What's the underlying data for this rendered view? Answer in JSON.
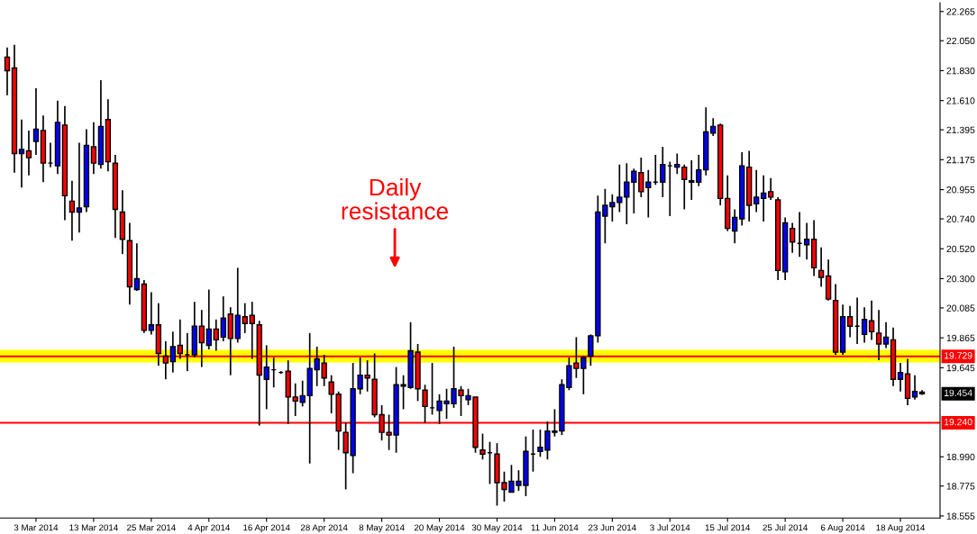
{
  "chart_data": {
    "type": "candlestick",
    "categories": [
      null,
      null,
      null,
      null,
      "3 Mar 2014",
      null,
      null,
      null,
      null,
      null,
      null,
      null,
      "13 Mar 2014",
      null,
      null,
      null,
      null,
      null,
      null,
      null,
      "25 Mar 2014",
      null,
      null,
      null,
      null,
      null,
      null,
      null,
      "4 Apr 2014",
      null,
      null,
      null,
      null,
      null,
      null,
      null,
      "16 Apr 2014",
      null,
      null,
      null,
      null,
      null,
      null,
      null,
      "28 Apr 2014",
      null,
      null,
      null,
      null,
      null,
      null,
      null,
      "8 May 2014",
      null,
      null,
      null,
      null,
      null,
      null,
      null,
      "20 May 2014",
      null,
      null,
      null,
      null,
      null,
      null,
      null,
      "30 May 2014",
      null,
      null,
      null,
      null,
      null,
      null,
      null,
      "11 Jun 2014",
      null,
      null,
      null,
      null,
      null,
      null,
      null,
      "23 Jun 2014",
      null,
      null,
      null,
      null,
      null,
      null,
      null,
      "3 Jul 2014",
      null,
      null,
      null,
      null,
      null,
      null,
      null,
      "15 Jul 2014",
      null,
      null,
      null,
      null,
      null,
      null,
      null,
      "25 Jul 2014",
      null,
      null,
      null,
      null,
      null,
      null,
      null,
      "6 Aug 2014",
      null,
      null,
      null,
      null,
      null,
      null,
      null,
      "18 Aug 2014",
      null,
      null,
      null
    ],
    "ohlc": [
      [
        21.93,
        22.0,
        21.65,
        21.83
      ],
      [
        21.85,
        22.02,
        21.08,
        21.22
      ],
      [
        21.22,
        21.47,
        20.97,
        21.25
      ],
      [
        21.24,
        21.39,
        21.06,
        21.19
      ],
      [
        21.31,
        21.7,
        21.21,
        21.4
      ],
      [
        21.39,
        21.5,
        21.01,
        21.15
      ],
      [
        21.15,
        21.3,
        21.12,
        21.15
      ],
      [
        21.13,
        21.61,
        21.07,
        21.45
      ],
      [
        21.43,
        21.57,
        20.73,
        20.91
      ],
      [
        20.87,
        21.02,
        20.58,
        20.79
      ],
      [
        20.79,
        21.3,
        20.64,
        20.82
      ],
      [
        20.83,
        21.4,
        20.79,
        21.28
      ],
      [
        21.27,
        21.45,
        21.07,
        21.15
      ],
      [
        21.14,
        21.76,
        21.11,
        21.42
      ],
      [
        21.47,
        21.62,
        21.09,
        21.16
      ],
      [
        21.15,
        21.21,
        20.6,
        20.81
      ],
      [
        20.79,
        20.95,
        20.48,
        20.59
      ],
      [
        20.58,
        20.71,
        20.11,
        20.24
      ],
      [
        20.22,
        20.56,
        20.21,
        20.3
      ],
      [
        20.26,
        20.29,
        19.9,
        19.92
      ],
      [
        19.92,
        20.2,
        19.89,
        19.96
      ],
      [
        19.96,
        20.12,
        19.66,
        19.75
      ],
      [
        19.73,
        19.84,
        19.56,
        19.68
      ],
      [
        19.69,
        19.91,
        19.61,
        19.8
      ],
      [
        19.81,
        20.0,
        19.71,
        19.75
      ],
      [
        19.74,
        19.9,
        19.62,
        19.74
      ],
      [
        19.74,
        20.13,
        19.72,
        19.95
      ],
      [
        19.95,
        20.07,
        19.65,
        19.83
      ],
      [
        19.81,
        20.22,
        19.78,
        19.93
      ],
      [
        19.93,
        20.0,
        19.77,
        19.85
      ],
      [
        19.87,
        20.17,
        19.84,
        20.01
      ],
      [
        20.04,
        20.09,
        19.59,
        19.86
      ],
      [
        19.86,
        20.38,
        19.83,
        20.03
      ],
      [
        20.02,
        20.12,
        19.9,
        19.97
      ],
      [
        20.03,
        20.13,
        19.71,
        19.97
      ],
      [
        19.96,
        19.99,
        19.22,
        19.59
      ],
      [
        19.56,
        19.81,
        19.34,
        19.65
      ],
      [
        19.63,
        19.72,
        19.5,
        19.63
      ],
      [
        19.61,
        19.62,
        19.6,
        19.61
      ],
      [
        19.62,
        19.7,
        19.23,
        19.43
      ],
      [
        19.43,
        19.53,
        19.29,
        19.4
      ],
      [
        19.39,
        19.55,
        19.36,
        19.44
      ],
      [
        19.44,
        19.9,
        18.94,
        19.64
      ],
      [
        19.63,
        19.8,
        19.51,
        19.71
      ],
      [
        19.68,
        19.74,
        19.51,
        19.57
      ],
      [
        19.54,
        19.59,
        19.31,
        19.45
      ],
      [
        19.45,
        19.47,
        19.04,
        19.18
      ],
      [
        19.17,
        19.24,
        18.75,
        19.02
      ],
      [
        19.0,
        19.68,
        18.87,
        19.49
      ],
      [
        19.49,
        19.72,
        19.45,
        19.59
      ],
      [
        19.59,
        19.7,
        19.47,
        19.57
      ],
      [
        19.56,
        19.75,
        19.28,
        19.3
      ],
      [
        19.3,
        19.37,
        19.11,
        19.17
      ],
      [
        19.17,
        19.3,
        19.04,
        19.15
      ],
      [
        19.15,
        19.65,
        19.02,
        19.52
      ],
      [
        19.51,
        19.59,
        19.34,
        19.52
      ],
      [
        19.5,
        19.98,
        19.49,
        19.77
      ],
      [
        19.76,
        19.82,
        19.4,
        19.49
      ],
      [
        19.48,
        19.52,
        19.24,
        19.36
      ],
      [
        19.35,
        19.68,
        19.3,
        19.35
      ],
      [
        19.33,
        19.45,
        19.23,
        19.4
      ],
      [
        19.38,
        19.49,
        19.27,
        19.4
      ],
      [
        19.38,
        19.8,
        19.35,
        19.49
      ],
      [
        19.48,
        19.51,
        19.29,
        19.44
      ],
      [
        19.41,
        19.49,
        19.37,
        19.44
      ],
      [
        19.43,
        19.43,
        19.02,
        19.06
      ],
      [
        19.04,
        19.16,
        18.97,
        19.01
      ],
      [
        19.02,
        19.1,
        18.79,
        19.02
      ],
      [
        19.01,
        19.09,
        18.63,
        18.8
      ],
      [
        18.8,
        18.88,
        18.66,
        18.75
      ],
      [
        18.73,
        18.93,
        18.73,
        18.81
      ],
      [
        18.78,
        18.89,
        18.74,
        18.81
      ],
      [
        18.78,
        19.14,
        18.7,
        19.03
      ],
      [
        19.01,
        19.19,
        18.88,
        19.01
      ],
      [
        19.03,
        19.19,
        18.99,
        19.06
      ],
      [
        19.04,
        19.25,
        18.97,
        19.18
      ],
      [
        19.17,
        19.34,
        19.14,
        19.18
      ],
      [
        19.18,
        19.56,
        19.15,
        19.52
      ],
      [
        19.5,
        19.72,
        19.48,
        19.66
      ],
      [
        19.68,
        19.87,
        19.57,
        19.64
      ],
      [
        19.64,
        19.73,
        19.45,
        19.72
      ],
      [
        19.73,
        19.89,
        19.66,
        19.88
      ],
      [
        19.88,
        20.91,
        19.83,
        20.79
      ],
      [
        20.76,
        20.96,
        20.56,
        20.84
      ],
      [
        20.83,
        20.92,
        20.72,
        20.86
      ],
      [
        20.86,
        21.14,
        20.79,
        20.9
      ],
      [
        20.9,
        21.15,
        20.7,
        21.01
      ],
      [
        21.01,
        21.11,
        20.78,
        21.09
      ],
      [
        21.08,
        21.19,
        20.9,
        20.94
      ],
      [
        20.97,
        21.1,
        20.75,
        21.01
      ],
      [
        21.01,
        21.21,
        20.99,
        21.01
      ],
      [
        21.01,
        21.27,
        20.9,
        21.14
      ],
      [
        21.13,
        21.16,
        20.76,
        21.13
      ],
      [
        21.12,
        21.22,
        21.07,
        21.14
      ],
      [
        21.12,
        21.14,
        20.81,
        21.03
      ],
      [
        21.02,
        21.17,
        20.88,
        21.01
      ],
      [
        21.01,
        21.21,
        20.98,
        21.1
      ],
      [
        21.1,
        21.56,
        21.06,
        21.38
      ],
      [
        21.37,
        21.48,
        21.35,
        21.42
      ],
      [
        21.43,
        21.44,
        20.84,
        20.89
      ],
      [
        20.89,
        21.06,
        20.65,
        20.67
      ],
      [
        20.65,
        20.81,
        20.56,
        20.75
      ],
      [
        20.74,
        21.23,
        20.69,
        21.13
      ],
      [
        21.12,
        21.24,
        20.72,
        20.84
      ],
      [
        20.85,
        21.1,
        20.79,
        20.9
      ],
      [
        20.89,
        21.06,
        20.72,
        20.93
      ],
      [
        20.94,
        21.04,
        20.88,
        20.9
      ],
      [
        20.88,
        20.9,
        20.29,
        20.36
      ],
      [
        20.35,
        20.75,
        20.29,
        20.71
      ],
      [
        20.67,
        20.71,
        20.49,
        20.57
      ],
      [
        20.56,
        20.79,
        20.46,
        20.56
      ],
      [
        20.55,
        20.71,
        20.44,
        20.59
      ],
      [
        20.59,
        20.73,
        20.32,
        20.38
      ],
      [
        20.36,
        20.53,
        20.24,
        20.31
      ],
      [
        20.32,
        20.44,
        20.14,
        20.15
      ],
      [
        20.14,
        20.26,
        19.74,
        19.76
      ],
      [
        19.76,
        20.11,
        19.74,
        20.02
      ],
      [
        20.02,
        20.1,
        19.87,
        19.95
      ],
      [
        19.95,
        20.16,
        19.82,
        19.95
      ],
      [
        19.89,
        20.09,
        19.83,
        20.0
      ],
      [
        19.99,
        20.14,
        19.85,
        19.91
      ],
      [
        19.9,
        20.07,
        19.7,
        19.82
      ],
      [
        19.82,
        19.98,
        19.79,
        19.87
      ],
      [
        19.85,
        19.94,
        19.51,
        19.56
      ],
      [
        19.56,
        19.68,
        19.47,
        19.61
      ],
      [
        19.6,
        19.71,
        19.37,
        19.42
      ],
      [
        19.43,
        19.59,
        19.41,
        19.47
      ],
      [
        19.465,
        19.48,
        19.445,
        19.454
      ]
    ],
    "colors": [
      "#ff0000",
      "#ff0000",
      "#0000ff",
      "#ff0000",
      "#0000ff",
      "#ff0000",
      "#000000",
      "#0000ff",
      "#ff0000",
      "#ff0000",
      "#0000ff",
      "#0000ff",
      "#ff0000",
      "#0000ff",
      "#ff0000",
      "#ff0000",
      "#ff0000",
      "#ff0000",
      "#0000ff",
      "#ff0000",
      "#0000ff",
      "#ff0000",
      "#ff0000",
      "#0000ff",
      "#ff0000",
      "#000000",
      "#0000ff",
      "#ff0000",
      "#0000ff",
      "#ff0000",
      "#0000ff",
      "#ff0000",
      "#0000ff",
      "#ff0000",
      "#ff0000",
      "#ff0000",
      "#0000ff",
      "#000000",
      "#000000",
      "#ff0000",
      "#ff0000",
      "#0000ff",
      "#0000ff",
      "#0000ff",
      "#ff0000",
      "#ff0000",
      "#ff0000",
      "#ff0000",
      "#0000ff",
      "#0000ff",
      "#ff0000",
      "#ff0000",
      "#ff0000",
      "#ff0000",
      "#0000ff",
      "#0000ff",
      "#0000ff",
      "#ff0000",
      "#ff0000",
      "#000000",
      "#0000ff",
      "#0000ff",
      "#0000ff",
      "#ff0000",
      "#0000ff",
      "#ff0000",
      "#ff0000",
      "#000000",
      "#ff0000",
      "#ff0000",
      "#0000ff",
      "#0000ff",
      "#0000ff",
      "#000000",
      "#0000ff",
      "#0000ff",
      "#0000ff",
      "#0000ff",
      "#0000ff",
      "#ff0000",
      "#0000ff",
      "#0000ff",
      "#0000ff",
      "#0000ff",
      "#0000ff",
      "#0000ff",
      "#0000ff",
      "#0000ff",
      "#ff0000",
      "#0000ff",
      "#000000",
      "#0000ff",
      "#000000",
      "#0000ff",
      "#ff0000",
      "#ff0000",
      "#0000ff",
      "#0000ff",
      "#0000ff",
      "#ff0000",
      "#ff0000",
      "#0000ff",
      "#0000ff",
      "#ff0000",
      "#0000ff",
      "#0000ff",
      "#ff0000",
      "#ff0000",
      "#0000ff",
      "#ff0000",
      "#000000",
      "#0000ff",
      "#ff0000",
      "#ff0000",
      "#ff0000",
      "#ff0000",
      "#0000ff",
      "#ff0000",
      "#000000",
      "#0000ff",
      "#ff0000",
      "#ff0000",
      "#0000ff",
      "#ff0000",
      "#0000ff",
      "#ff0000",
      "#0000ff",
      "#ff0000"
    ],
    "ylim": [
      18.54,
      22.33
    ],
    "yticks": [
      22.265,
      {
        "value": 22.05,
        "label": "22.050"
      },
      {
        "value": 21.83,
        "label": "21.830"
      },
      {
        "value": 21.61,
        "label": "21.610"
      },
      21.395,
      21.175,
      20.955,
      {
        "value": 20.74,
        "label": "20.740"
      },
      {
        "value": 20.52,
        "label": "20.520"
      },
      {
        "value": 20.3,
        "label": "20.300"
      },
      20.085,
      19.865,
      19.645,
      {
        "value": 18.99,
        "label": "18.990"
      },
      18.775,
      18.555
    ],
    "ref_lines": [
      {
        "axis": "y",
        "value": 19.729,
        "label": "19.729",
        "color": "#ff0000"
      },
      {
        "axis": "y",
        "value": 19.24,
        "label": "19.240",
        "color": "#ff0000"
      }
    ],
    "bands": [
      {
        "axis": "y",
        "from": 19.684,
        "to": 19.777,
        "color": "#ffff00"
      }
    ],
    "annotations": [
      "Daily\nresistance",
      "19.454"
    ],
    "grid": false,
    "legend": false
  }
}
